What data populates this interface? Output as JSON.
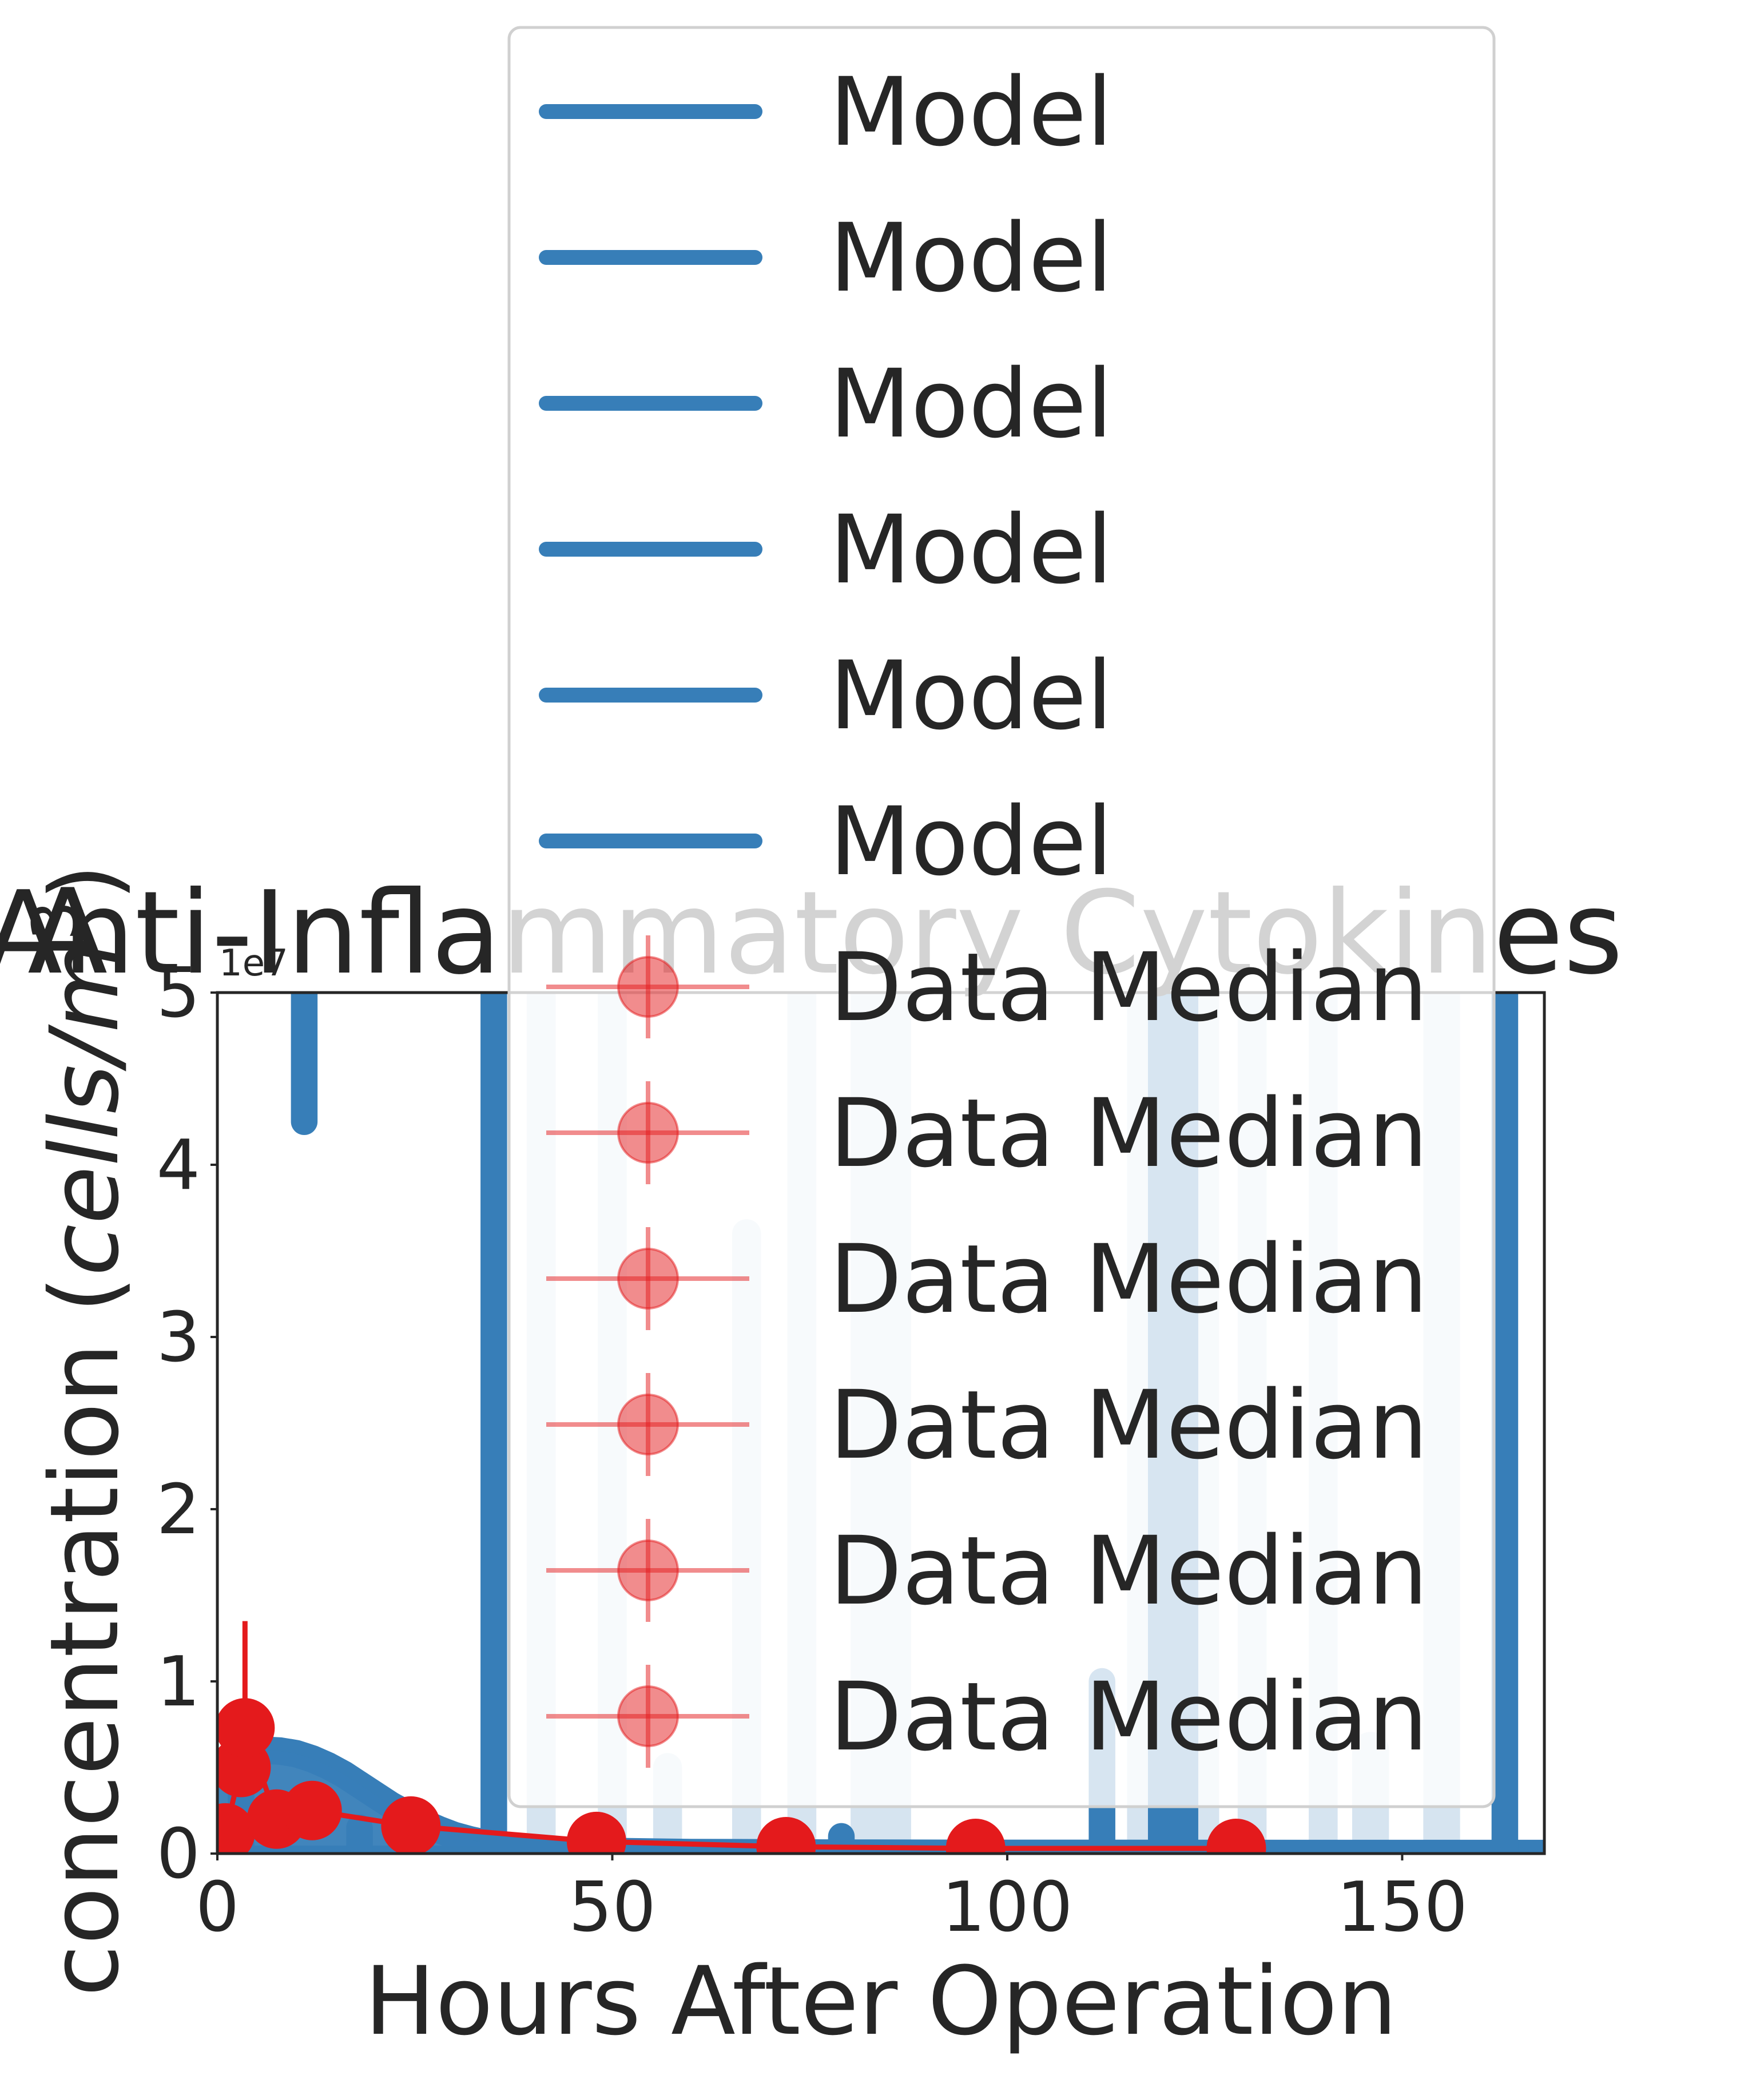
{
  "panel_letter": "A",
  "chart_data": {
    "type": "line",
    "title": "Anti-Inflammatory Cytokines",
    "xlabel": "Hours After Operation",
    "ylabel_text": "concentration (",
    "ylabel_unit_base": "cells/m",
    "ylabel_unit_exp": "3",
    "ylabel_close": ")",
    "y_offset_label": "1e7",
    "xlim": [
      0,
      168
    ],
    "ylim": [
      0,
      50000000
    ],
    "xticks": [
      0,
      50,
      100,
      150
    ],
    "xtick_labels": [
      "0",
      "50",
      "100",
      "150"
    ],
    "yticks": [
      0,
      10000000,
      20000000,
      30000000,
      40000000,
      50000000
    ],
    "ytick_labels": [
      "0",
      "1",
      "2",
      "3",
      "4",
      "5"
    ],
    "grid": false,
    "legend_placement": "top-center, outside axes",
    "colors": {
      "model": "#377eb8",
      "model_band": "#d6e4f0",
      "data": "#e41a1c"
    },
    "legend": {
      "entries": [
        {
          "label": "Model",
          "kind": "line"
        },
        {
          "label": "Model",
          "kind": "line"
        },
        {
          "label": "Model",
          "kind": "line"
        },
        {
          "label": "Model",
          "kind": "line"
        },
        {
          "label": "Model",
          "kind": "line"
        },
        {
          "label": "Model",
          "kind": "line"
        },
        {
          "label": "Data Median",
          "kind": "marker"
        },
        {
          "label": "Data Median",
          "kind": "marker"
        },
        {
          "label": "Data Median",
          "kind": "marker"
        },
        {
          "label": "Data Median",
          "kind": "marker"
        },
        {
          "label": "Data Median",
          "kind": "marker"
        },
        {
          "label": "Data Median",
          "kind": "marker"
        }
      ]
    },
    "series": [
      {
        "name": "Model",
        "kind": "model_curve",
        "x": [
          0,
          2,
          4,
          6,
          8,
          10,
          12,
          14,
          16,
          18,
          20,
          22,
          24,
          26,
          28,
          30,
          32,
          34,
          36,
          40,
          45,
          50,
          60,
          80,
          100,
          130,
          168
        ],
        "y": [
          5200000,
          5600000,
          5900000,
          6000000,
          5950000,
          5800000,
          5500000,
          5100000,
          4600000,
          4000000,
          3400000,
          2800000,
          2300000,
          1800000,
          1400000,
          1050000,
          800000,
          600000,
          450000,
          280000,
          180000,
          120000,
          60000,
          25000,
          12000,
          6000,
          3000
        ]
      },
      {
        "name": "Model",
        "kind": "model_spikes",
        "x": [
          3,
          11,
          18,
          35,
          41,
          50,
          57,
          67,
          74,
          79,
          84,
          112,
          117,
          121,
          125,
          131,
          140,
          146,
          155,
          163
        ],
        "y_top": [
          5000000,
          50000000,
          1500000,
          50000000,
          50000000,
          50000000,
          5000000,
          36000000,
          50000000,
          1000000,
          50000000,
          10000000,
          50000000,
          50000000,
          50000000,
          50000000,
          50000000,
          6000000,
          50000000,
          50000000
        ],
        "y_bottom": [
          0,
          42500000,
          0,
          0,
          0,
          0,
          0,
          0,
          0,
          0,
          0,
          0,
          0,
          0,
          0,
          0,
          0,
          0,
          0,
          0
        ],
        "band": [
          false,
          false,
          false,
          false,
          true,
          true,
          true,
          true,
          true,
          false,
          true,
          false,
          true,
          false,
          true,
          true,
          true,
          true,
          true,
          false
        ],
        "width": [
          2.5,
          2.5,
          2.5,
          2.5,
          2.5,
          2.5,
          2.5,
          2.5,
          2.5,
          2.5,
          6.5,
          2.5,
          2.5,
          5.5,
          2.5,
          2.5,
          2.5,
          3.5,
          3.5,
          2.5
        ]
      },
      {
        "name": "Data Median",
        "kind": "data",
        "x": [
          1,
          3,
          3.5,
          7.5,
          12,
          24.5,
          48,
          72,
          96,
          129
        ],
        "y": [
          1200000,
          5000000,
          7300000,
          2000000,
          2500000,
          1600000,
          700000,
          400000,
          300000,
          300000
        ],
        "err_low": [
          0,
          0,
          0,
          0,
          0,
          0,
          0,
          0,
          0,
          0
        ],
        "err_high": [
          0,
          0,
          13500000,
          0,
          0,
          0,
          0,
          0,
          0,
          0
        ]
      }
    ]
  }
}
